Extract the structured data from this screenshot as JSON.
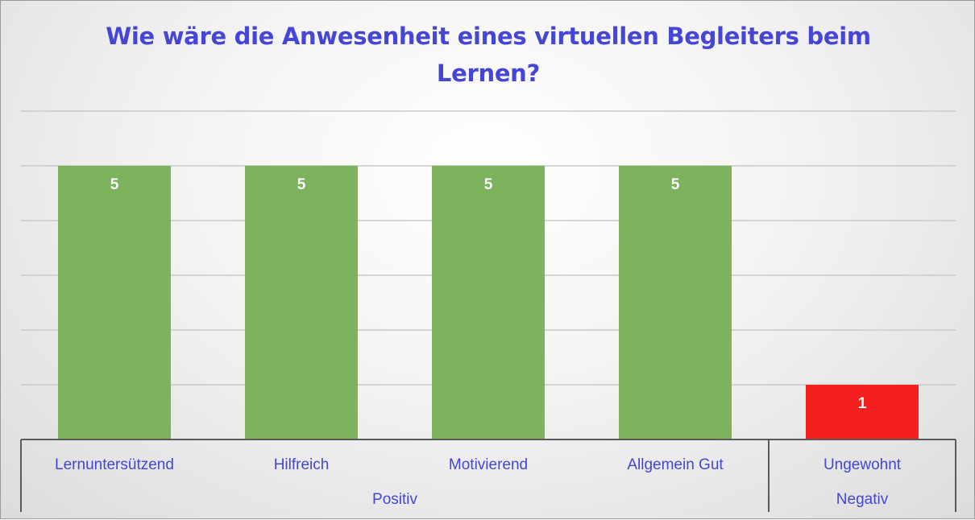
{
  "chart_data": {
    "type": "bar",
    "title_lines": [
      "Wie wäre die Anwesenheit eines virtuellen Begleiters beim",
      "Lernen?"
    ],
    "categories": [
      "Lernuntersützend",
      "Hilfreich",
      "Motivierend",
      "Allgemein Gut",
      "Ungewohnt"
    ],
    "groups": [
      {
        "label": "Positiv",
        "count": 4
      },
      {
        "label": "Negativ",
        "count": 1
      }
    ],
    "values": [
      5,
      5,
      5,
      5,
      1
    ],
    "bar_colors": [
      "#7db35d",
      "#7db35d",
      "#7db35d",
      "#7db35d",
      "#f41f1f"
    ],
    "data_label_color": "#ffffff",
    "label_color": "#4545d6",
    "ylim": [
      0,
      6
    ],
    "gridlines": true,
    "legend": "none"
  }
}
